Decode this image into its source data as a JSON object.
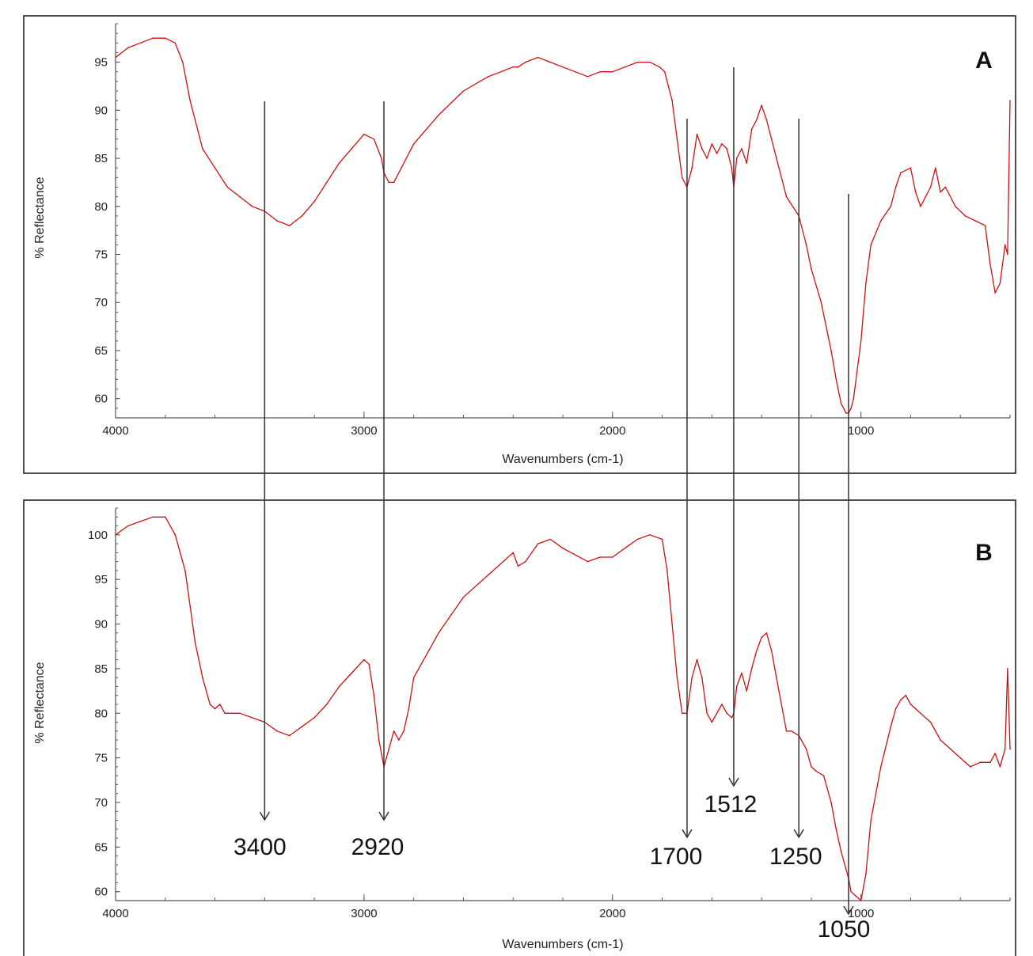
{
  "chart_data": [
    {
      "type": "line",
      "panel": "A",
      "xlabel": "Wavenumbers (cm-1)",
      "ylabel": "% Reflectance",
      "x_reversed": true,
      "xlim": [
        4000,
        400
      ],
      "ylim": [
        58,
        99
      ],
      "xticks": [
        4000,
        3000,
        2000,
        1000
      ],
      "yticks": [
        60,
        65,
        70,
        75,
        80,
        85,
        90,
        95
      ],
      "series": [
        {
          "color": "#cc1111",
          "x": [
            4000,
            3950,
            3900,
            3850,
            3800,
            3760,
            3730,
            3700,
            3650,
            3600,
            3550,
            3500,
            3450,
            3400,
            3350,
            3300,
            3250,
            3200,
            3150,
            3100,
            3050,
            3000,
            2960,
            2930,
            2920,
            2900,
            2880,
            2850,
            2800,
            2700,
            2600,
            2500,
            2400,
            2380,
            2350,
            2300,
            2250,
            2200,
            2150,
            2100,
            2050,
            2000,
            1950,
            1900,
            1850,
            1810,
            1790,
            1760,
            1740,
            1720,
            1700,
            1680,
            1660,
            1640,
            1620,
            1600,
            1580,
            1560,
            1540,
            1520,
            1512,
            1500,
            1480,
            1460,
            1440,
            1420,
            1400,
            1380,
            1360,
            1340,
            1300,
            1250,
            1220,
            1200,
            1160,
            1140,
            1120,
            1100,
            1080,
            1060,
            1050,
            1040,
            1030,
            1000,
            980,
            960,
            920,
            880,
            860,
            840,
            800,
            780,
            760,
            740,
            720,
            700,
            680,
            660,
            620,
            580,
            540,
            500,
            480,
            460,
            440,
            420,
            410,
            400
          ],
          "y": [
            95.5,
            96.5,
            97,
            97.5,
            97.5,
            97,
            95,
            91,
            86,
            84,
            82,
            81,
            80,
            79.5,
            78.5,
            78,
            79,
            80.5,
            82.5,
            84.5,
            86,
            87.5,
            87,
            85,
            83.5,
            82.5,
            82.5,
            84,
            86.5,
            89.5,
            92,
            93.5,
            94.5,
            94.5,
            95,
            95.5,
            95,
            94.5,
            94,
            93.5,
            94,
            94,
            94.5,
            95,
            95,
            94.5,
            94,
            91,
            87,
            83,
            82,
            84,
            87.5,
            86,
            85,
            86.5,
            85.5,
            86.5,
            86,
            84,
            82,
            85,
            86,
            84.5,
            88,
            89,
            90.5,
            89,
            87,
            85,
            81,
            79,
            76,
            73.5,
            70,
            67.5,
            65,
            62,
            59.5,
            58.5,
            58.5,
            59,
            60,
            66,
            72,
            76,
            78.5,
            80,
            82,
            83.5,
            84,
            81.5,
            80,
            81,
            82,
            84,
            81.5,
            82,
            80,
            79,
            78.5,
            78,
            74,
            71,
            72,
            76,
            75,
            91
          ]
        }
      ]
    },
    {
      "type": "line",
      "panel": "B",
      "xlabel": "Wavenumbers (cm-1)",
      "ylabel": "% Reflectance",
      "x_reversed": true,
      "xlim": [
        4000,
        400
      ],
      "ylim": [
        59,
        103
      ],
      "xticks": [
        4000,
        3000,
        2000,
        1000
      ],
      "yticks": [
        60,
        65,
        70,
        75,
        80,
        85,
        90,
        95,
        100
      ],
      "series": [
        {
          "color": "#cc1111",
          "x": [
            4000,
            3950,
            3900,
            3850,
            3800,
            3760,
            3720,
            3700,
            3680,
            3650,
            3620,
            3600,
            3580,
            3560,
            3550,
            3500,
            3450,
            3400,
            3350,
            3300,
            3250,
            3200,
            3150,
            3100,
            3050,
            3000,
            2980,
            2960,
            2940,
            2920,
            2900,
            2880,
            2860,
            2840,
            2820,
            2800,
            2700,
            2600,
            2500,
            2400,
            2380,
            2350,
            2300,
            2250,
            2200,
            2100,
            2050,
            2000,
            1950,
            1900,
            1850,
            1800,
            1780,
            1760,
            1740,
            1720,
            1700,
            1680,
            1660,
            1640,
            1620,
            1600,
            1560,
            1540,
            1520,
            1512,
            1500,
            1480,
            1460,
            1440,
            1420,
            1400,
            1380,
            1360,
            1340,
            1300,
            1280,
            1250,
            1220,
            1200,
            1180,
            1150,
            1120,
            1100,
            1080,
            1060,
            1050,
            1040,
            1020,
            1000,
            980,
            960,
            920,
            880,
            860,
            840,
            820,
            800,
            780,
            760,
            720,
            680,
            640,
            600,
            560,
            520,
            480,
            460,
            440,
            420,
            410,
            400
          ],
          "y": [
            100,
            101,
            101.5,
            102,
            102,
            100,
            96,
            92,
            88,
            84,
            81,
            80.5,
            81,
            80,
            80,
            80,
            79.5,
            79,
            78,
            77.5,
            78.5,
            79.5,
            81,
            83,
            84.5,
            86,
            85.5,
            82,
            77,
            74,
            76,
            78,
            77,
            78,
            80.5,
            84,
            89,
            93,
            95.5,
            98,
            96.5,
            97,
            99,
            99.5,
            98.5,
            97,
            97.5,
            97.5,
            98.5,
            99.5,
            100,
            99.5,
            96,
            90,
            84,
            80,
            80,
            84,
            86,
            84,
            80,
            79,
            81,
            80,
            79.5,
            80,
            83,
            84.5,
            82.5,
            85,
            87,
            88.5,
            89,
            87,
            84,
            78,
            78,
            77.5,
            76,
            74,
            73.5,
            73,
            70,
            67,
            64.5,
            62.5,
            61.5,
            60,
            59.5,
            59,
            62,
            68,
            74,
            78.5,
            80.5,
            81.5,
            82,
            81,
            80.5,
            80,
            79,
            77,
            76,
            75,
            74,
            74.5,
            74.5,
            75.5,
            74,
            76,
            85,
            76
          ]
        }
      ]
    }
  ],
  "panels": {
    "a": {
      "letter": "A",
      "xlabel": "Wavenumbers (cm-1)",
      "ylabel": "% Reflectance"
    },
    "b": {
      "letter": "B",
      "xlabel": "Wavenumbers (cm-1)",
      "ylabel": "% Reflectance"
    }
  },
  "annotations": [
    {
      "label": "3400",
      "wavenumber": 3400
    },
    {
      "label": "2920",
      "wavenumber": 2920
    },
    {
      "label": "1700",
      "wavenumber": 1700
    },
    {
      "label": "1512",
      "wavenumber": 1512
    },
    {
      "label": "1250",
      "wavenumber": 1250
    },
    {
      "label": "1050",
      "wavenumber": 1050
    }
  ]
}
